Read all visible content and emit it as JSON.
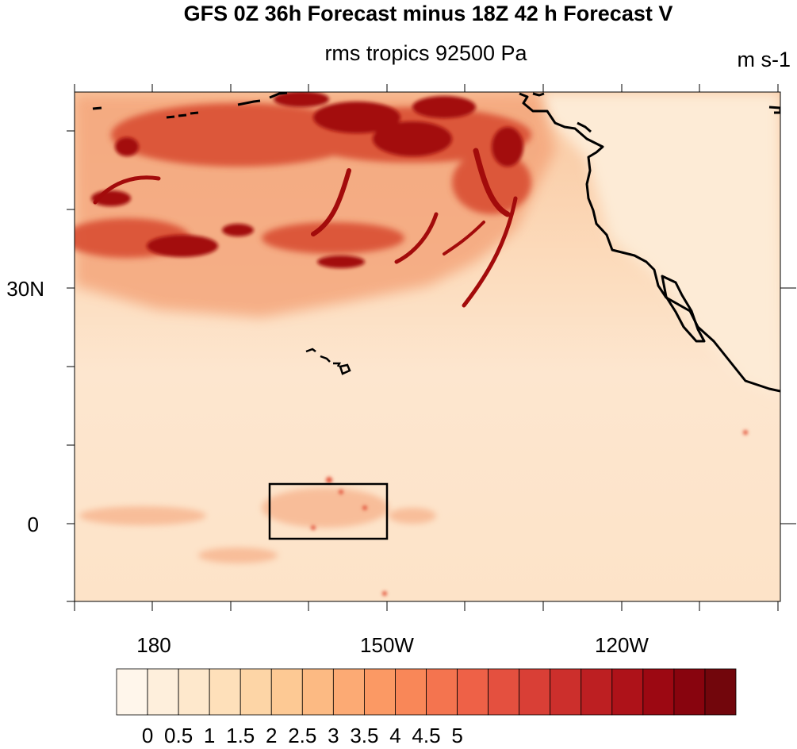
{
  "title": "GFS 0Z 36h Forecast minus 18Z 42 h Forecast V",
  "subtitle": "rms tropics 92500 Pa",
  "units": "m s-1",
  "map": {
    "lat_labels": [
      "30N",
      "0"
    ],
    "lon_labels": [
      "180",
      "150W",
      "120W"
    ],
    "region_box_label": ""
  },
  "colorbar": {
    "labels": [
      "0",
      "0.5",
      "1",
      "1.5",
      "2",
      "2.5",
      "3",
      "3.5",
      "4",
      "4.5",
      "5"
    ],
    "colors": [
      "#fff6eb",
      "#feefdc",
      "#fee8cc",
      "#fee0ba",
      "#fdd5a6",
      "#fdc994",
      "#fcba83",
      "#fcaa74",
      "#fb9964",
      "#f98758",
      "#f4744f",
      "#ee6147",
      "#e4503f",
      "#d93f36",
      "#cc2f2c",
      "#bd1f22",
      "#ae1219",
      "#9c0812",
      "#88040e",
      "#72060c"
    ]
  },
  "colors": {
    "background_field": "#fde8cf",
    "high_field": "#a30b0b",
    "coastline": "#000000"
  }
}
